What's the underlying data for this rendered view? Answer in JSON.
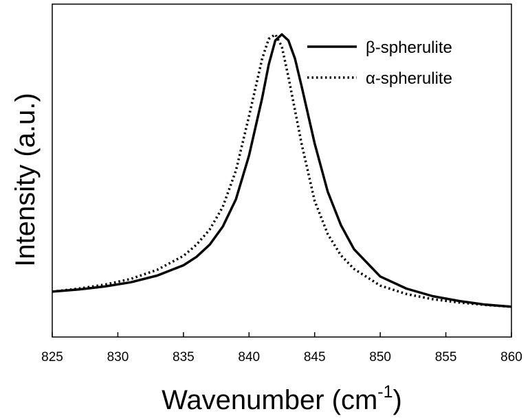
{
  "chart_data": {
    "type": "line",
    "title": "",
    "xlabel": "Wavenumber (cm",
    "xlabel_superscript": "-1",
    "xlabel_close": ")",
    "ylabel": "Intensity (a.u.)",
    "xlim": [
      825,
      860
    ],
    "ylim": [
      0,
      1.1
    ],
    "xticks": [
      825,
      830,
      835,
      840,
      845,
      850,
      855,
      860
    ],
    "yticks_shown": false,
    "grid": false,
    "legend_position": "top-right",
    "series": [
      {
        "name": "β-spherulite",
        "style": "solid",
        "color": "#000000",
        "x": [
          825,
          827,
          829,
          831,
          833,
          835,
          836,
          837,
          838,
          839,
          840,
          841,
          841.5,
          842,
          842.5,
          843,
          843.5,
          844,
          845,
          846,
          847,
          848,
          850,
          852,
          854,
          856,
          858,
          860
        ],
        "y": [
          0.15,
          0.157,
          0.167,
          0.181,
          0.203,
          0.237,
          0.265,
          0.305,
          0.365,
          0.455,
          0.6,
          0.79,
          0.9,
          0.98,
          1.0,
          0.98,
          0.92,
          0.83,
          0.64,
          0.48,
          0.37,
          0.29,
          0.2,
          0.16,
          0.135,
          0.119,
          0.107,
          0.1
        ]
      },
      {
        "name": "α-spherulite",
        "style": "dotted",
        "color": "#000000",
        "x": [
          825,
          827,
          829,
          831,
          833,
          835,
          836,
          837,
          838,
          839,
          840,
          841,
          841.5,
          842,
          842.5,
          843,
          844,
          845,
          846,
          847,
          848,
          850,
          852,
          854,
          856,
          858,
          860
        ],
        "y": [
          0.15,
          0.16,
          0.173,
          0.192,
          0.222,
          0.268,
          0.305,
          0.355,
          0.43,
          0.55,
          0.73,
          0.92,
          0.985,
          1.0,
          0.96,
          0.86,
          0.64,
          0.45,
          0.34,
          0.27,
          0.225,
          0.17,
          0.142,
          0.125,
          0.114,
          0.106,
          0.1
        ]
      }
    ]
  }
}
